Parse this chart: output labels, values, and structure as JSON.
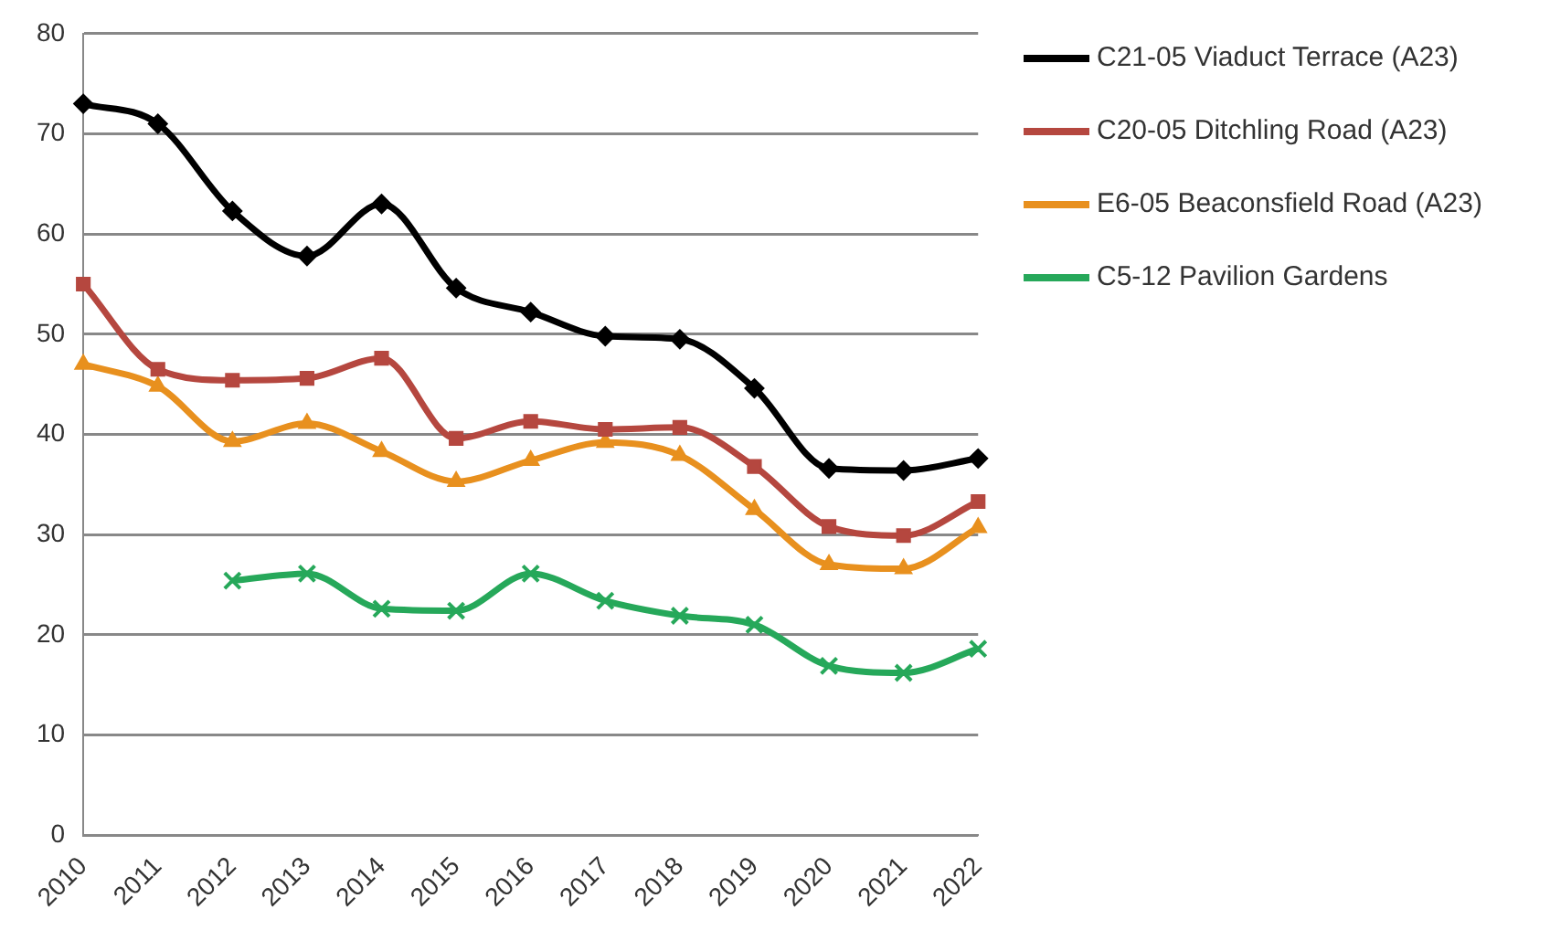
{
  "chart_data": {
    "type": "line",
    "categories": [
      "2010",
      "2011",
      "2012",
      "2013",
      "2014",
      "2015",
      "2016",
      "2017",
      "2018",
      "2019",
      "2020",
      "2021",
      "2022"
    ],
    "series": [
      {
        "name": "C21-05 Viaduct Terrace (A23)",
        "color": "#000000",
        "marker": "diamond",
        "values": [
          73,
          71,
          62.3,
          57.8,
          63,
          54.6,
          52.2,
          49.8,
          49.5,
          44.6,
          36.6,
          36.4,
          37.6
        ]
      },
      {
        "name": "C20-05 Ditchling Road (A23)",
        "color": "#b5473f",
        "marker": "square",
        "values": [
          55,
          46.5,
          45.4,
          45.6,
          47.6,
          39.6,
          41.3,
          40.5,
          40.7,
          36.8,
          30.8,
          29.9,
          33.3
        ]
      },
      {
        "name": "E6-05 Beaconsfield Road (A23)",
        "color": "#e8901e",
        "marker": "triangle",
        "values": [
          47,
          44.8,
          39.3,
          41.1,
          38.3,
          35.3,
          37.4,
          39.2,
          37.9,
          32.5,
          27,
          26.6,
          30.7
        ]
      },
      {
        "name": "C5-12 Pavilion Gardens",
        "color": "#26a85a",
        "marker": "cross",
        "values": [
          null,
          null,
          25.4,
          26.1,
          22.6,
          22.4,
          26.1,
          23.4,
          21.9,
          21,
          16.9,
          16.2,
          18.6
        ]
      }
    ],
    "ylim": [
      0,
      80
    ],
    "yticks": [
      0,
      10,
      20,
      30,
      40,
      50,
      60,
      70,
      80
    ],
    "grid": "y",
    "legend": "right"
  }
}
